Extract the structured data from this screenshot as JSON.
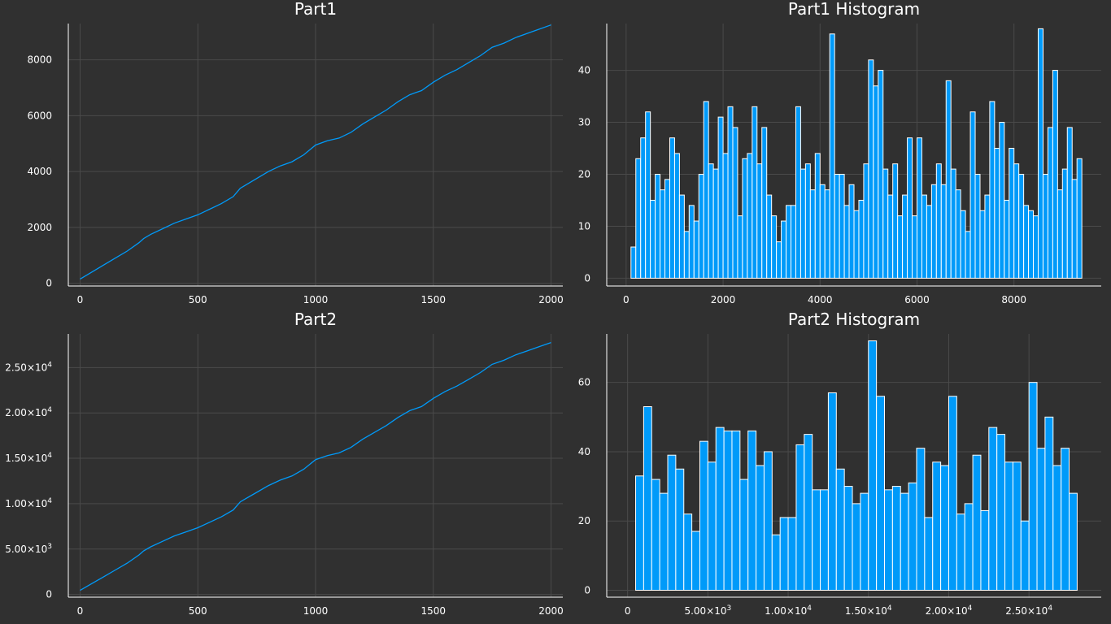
{
  "colors": {
    "background": "#303030",
    "series": "#009af9",
    "bar_edge": "#ffffff",
    "text": "#ffffff",
    "grid": "#4a4a4a"
  },
  "chart_data": [
    {
      "id": "part1",
      "type": "line",
      "title": "Part1",
      "xlabel": "",
      "ylabel": "",
      "xlim": [
        -50,
        2050
      ],
      "ylim": [
        -100,
        9300
      ],
      "xticks": [
        0,
        500,
        1000,
        1500,
        2000
      ],
      "xtick_labels": [
        "0",
        "500",
        "1000",
        "1500",
        "2000"
      ],
      "yticks": [
        0,
        2000,
        4000,
        6000,
        8000
      ],
      "ytick_labels": [
        "0",
        "2000",
        "4000",
        "6000",
        "8000"
      ],
      "grid": true,
      "x": [
        0,
        50,
        100,
        150,
        200,
        250,
        270,
        300,
        350,
        400,
        450,
        500,
        550,
        600,
        650,
        680,
        700,
        750,
        800,
        850,
        900,
        950,
        1000,
        1050,
        1100,
        1150,
        1200,
        1250,
        1300,
        1350,
        1400,
        1450,
        1500,
        1550,
        1600,
        1650,
        1700,
        1750,
        1800,
        1850,
        1900,
        1950,
        2000
      ],
      "y": [
        150,
        400,
        650,
        900,
        1150,
        1450,
        1600,
        1750,
        1950,
        2150,
        2300,
        2450,
        2650,
        2850,
        3100,
        3400,
        3500,
        3750,
        4000,
        4200,
        4350,
        4600,
        4950,
        5100,
        5200,
        5400,
        5700,
        5950,
        6200,
        6500,
        6750,
        6900,
        7200,
        7450,
        7650,
        7900,
        8150,
        8450,
        8600,
        8800,
        8950,
        9100,
        9250
      ]
    },
    {
      "id": "part1-histogram",
      "type": "bar",
      "title": "Part1 Histogram",
      "xlabel": "",
      "ylabel": "",
      "xlim": [
        -400,
        9800
      ],
      "ylim": [
        -1.5,
        49
      ],
      "xticks": [
        0,
        2000,
        4000,
        6000,
        8000
      ],
      "xtick_labels": [
        "0",
        "2000",
        "4000",
        "6000",
        "8000"
      ],
      "yticks": [
        0,
        10,
        20,
        30,
        40
      ],
      "ytick_labels": [
        "0",
        "10",
        "20",
        "30",
        "40"
      ],
      "grid": true,
      "bin_start": 100,
      "bin_width": 100,
      "values": [
        6,
        23,
        27,
        32,
        15,
        20,
        17,
        19,
        27,
        24,
        16,
        9,
        14,
        11,
        20,
        34,
        22,
        21,
        31,
        24,
        33,
        29,
        12,
        23,
        24,
        33,
        22,
        29,
        16,
        12,
        7,
        11,
        14,
        14,
        33,
        21,
        22,
        17,
        24,
        18,
        17,
        47,
        20,
        20,
        14,
        18,
        13,
        15,
        22,
        42,
        37,
        40,
        21,
        16,
        22,
        12,
        16,
        27,
        12,
        27,
        16,
        14,
        18,
        22,
        18,
        38,
        21,
        17,
        13,
        9,
        32,
        20,
        13,
        16,
        34,
        25,
        30,
        15,
        25,
        22,
        20,
        14,
        13,
        12,
        48,
        20,
        29,
        40,
        17,
        21,
        29,
        19,
        23
      ]
    },
    {
      "id": "part2",
      "type": "line",
      "title": "Part2",
      "xlabel": "",
      "ylabel": "",
      "xlim": [
        -50,
        2050
      ],
      "ylim": [
        -300,
        28700
      ],
      "xticks": [
        0,
        500,
        1000,
        1500,
        2000
      ],
      "xtick_labels": [
        "0",
        "500",
        "1000",
        "1500",
        "2000"
      ],
      "yticks": [
        0,
        5000,
        10000,
        15000,
        20000,
        25000
      ],
      "ytick_labels": [
        {
          "mantissa": "0",
          "exp": ""
        },
        {
          "mantissa": "5.00×10",
          "exp": "3"
        },
        {
          "mantissa": "1.00×10",
          "exp": "4"
        },
        {
          "mantissa": "1.50×10",
          "exp": "4"
        },
        {
          "mantissa": "2.00×10",
          "exp": "4"
        },
        {
          "mantissa": "2.50×10",
          "exp": "4"
        }
      ],
      "grid": true,
      "x": [
        0,
        50,
        100,
        150,
        200,
        250,
        270,
        300,
        350,
        400,
        450,
        500,
        550,
        600,
        650,
        680,
        700,
        750,
        800,
        850,
        900,
        950,
        1000,
        1050,
        1100,
        1150,
        1200,
        1250,
        1300,
        1350,
        1400,
        1450,
        1500,
        1550,
        1600,
        1650,
        1700,
        1750,
        1800,
        1850,
        1900,
        1950,
        2000
      ],
      "y": [
        450,
        1200,
        1950,
        2700,
        3450,
        4350,
        4800,
        5250,
        5850,
        6450,
        6900,
        7350,
        7950,
        8550,
        9300,
        10200,
        10500,
        11250,
        12000,
        12600,
        13050,
        13800,
        14850,
        15300,
        15600,
        16200,
        17100,
        17850,
        18600,
        19500,
        20250,
        20700,
        21600,
        22350,
        22950,
        23700,
        24450,
        25350,
        25800,
        26400,
        26850,
        27300,
        27750
      ]
    },
    {
      "id": "part2-histogram",
      "type": "bar",
      "title": "Part2 Histogram",
      "xlabel": "",
      "ylabel": "",
      "xlim": [
        -1300,
        29500
      ],
      "ylim": [
        -2,
        74
      ],
      "xticks": [
        0,
        5000,
        10000,
        15000,
        20000,
        25000
      ],
      "xtick_labels": [
        {
          "mantissa": "0",
          "exp": ""
        },
        {
          "mantissa": "5.00×10",
          "exp": "3"
        },
        {
          "mantissa": "1.00×10",
          "exp": "4"
        },
        {
          "mantissa": "1.50×10",
          "exp": "4"
        },
        {
          "mantissa": "2.00×10",
          "exp": "4"
        },
        {
          "mantissa": "2.50×10",
          "exp": "4"
        }
      ],
      "yticks": [
        0,
        20,
        40,
        60
      ],
      "ytick_labels": [
        "0",
        "20",
        "40",
        "60"
      ],
      "grid": true,
      "bin_start": 500,
      "bin_width": 500,
      "values": [
        33,
        53,
        32,
        28,
        39,
        35,
        22,
        17,
        43,
        37,
        47,
        46,
        46,
        32,
        46,
        36,
        40,
        16,
        21,
        21,
        42,
        45,
        29,
        29,
        57,
        35,
        30,
        25,
        28,
        72,
        56,
        29,
        30,
        28,
        31,
        41,
        21,
        37,
        36,
        56,
        22,
        25,
        39,
        23,
        47,
        45,
        37,
        37,
        20,
        60,
        41,
        50,
        36,
        41,
        28
      ]
    }
  ]
}
